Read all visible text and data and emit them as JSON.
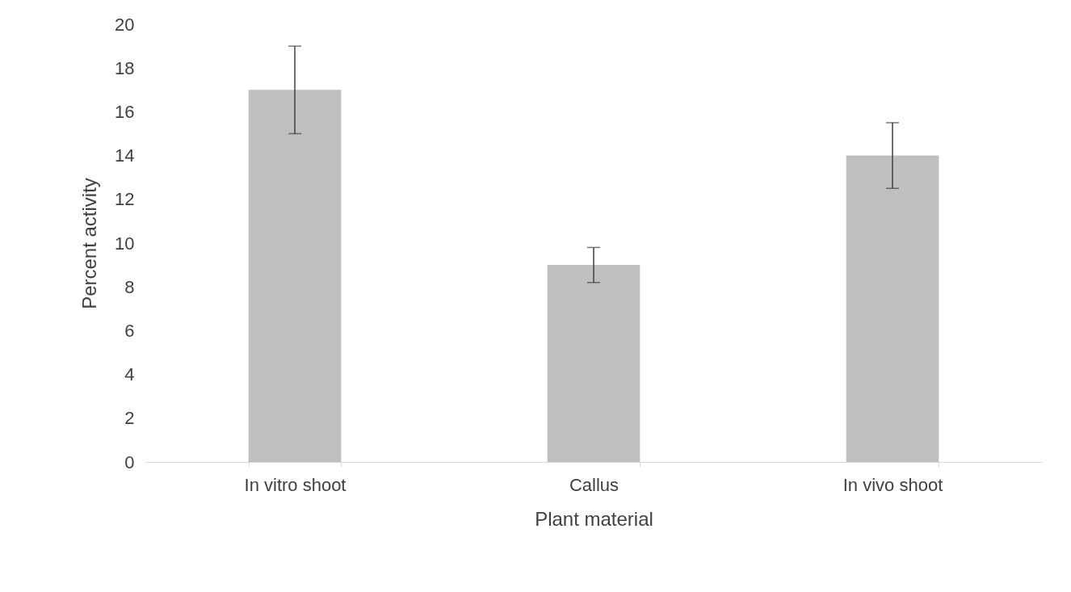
{
  "chart_data": {
    "type": "bar",
    "xlabel": "Plant material",
    "ylabel": "Percent activity",
    "categories": [
      "In vitro shoot",
      "Callus",
      "In vivo shoot"
    ],
    "values": [
      17,
      9,
      14
    ],
    "errors": [
      2,
      0.8,
      1.5
    ],
    "color": "#bfbfbf",
    "ylim": [
      0,
      20
    ],
    "yticks": [
      0,
      2,
      4,
      6,
      8,
      10,
      12,
      14,
      16,
      18,
      20
    ],
    "grid": false
  }
}
